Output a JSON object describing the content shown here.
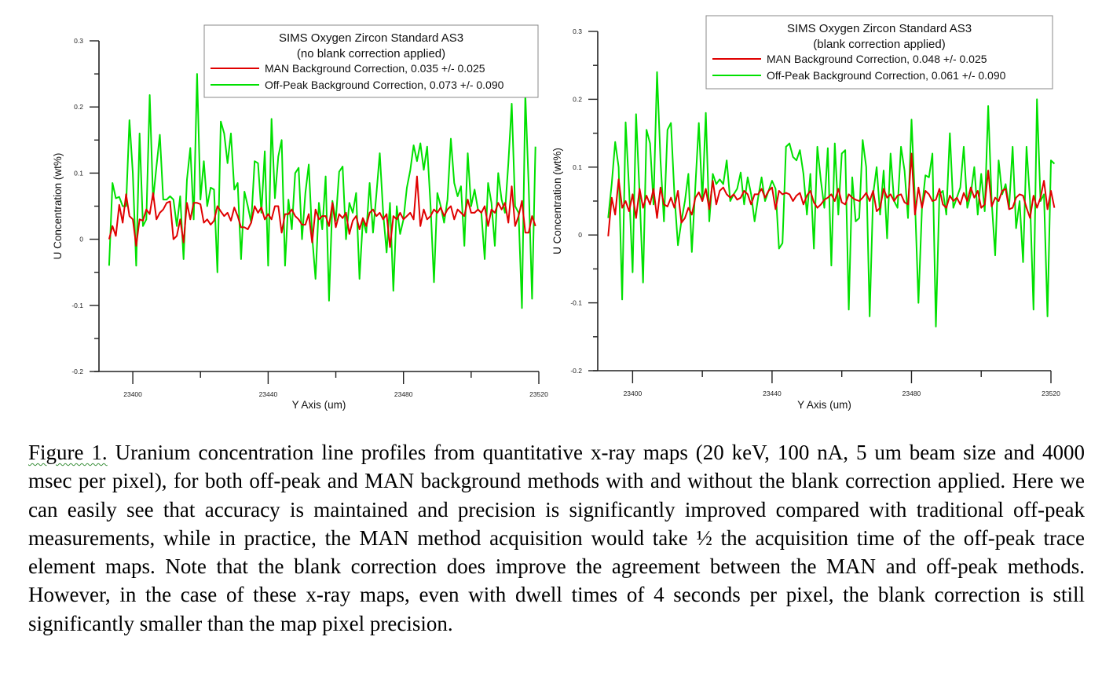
{
  "chart_data": [
    {
      "type": "line",
      "title": "SIMS Oxygen Zircon Standard AS3",
      "subtitle": "(no blank correction applied)",
      "xlabel": "Y Axis (um)",
      "ylabel": "U Concentration (wt%)",
      "xlim": [
        23390,
        23520
      ],
      "ylim": [
        -0.2,
        0.3
      ],
      "xticks": [
        23400,
        23440,
        23480,
        23520
      ],
      "xminor": [
        23420,
        23460,
        23500
      ],
      "yticks": [
        {
          "value": 0.3,
          "label": "0.3"
        },
        {
          "value": 0.2,
          "label": "0.2"
        },
        {
          "value": 0.1,
          "label": "0.1"
        },
        {
          "value": 0,
          "label": "0"
        },
        {
          "value": -0.1,
          "label": "-0.1"
        },
        {
          "value": -0.2,
          "label": "-0.2"
        }
      ],
      "yminor": [
        0.25,
        0.15,
        0.05,
        -0.05,
        -0.15
      ],
      "grid": false,
      "legend_position": "top-right",
      "x_start": 23393,
      "x_step": 1,
      "series": [
        {
          "name": "MAN Background Correction, 0.035 +/- 0.025",
          "color": "#e00000",
          "values": [
            0.0,
            0.02,
            0.005,
            0.052,
            0.025,
            0.068,
            0.035,
            0.03,
            -0.01,
            0.03,
            0.028,
            0.045,
            0.038,
            0.07,
            0.03,
            0.04,
            0.045,
            0.055,
            0.057,
            0.0,
            0.005,
            0.03,
            -0.005,
            0.055,
            0.03,
            0.055,
            0.055,
            0.053,
            0.025,
            0.03,
            0.022,
            0.028,
            0.05,
            0.042,
            0.035,
            0.04,
            0.028,
            0.048,
            0.035,
            0.018,
            0.018,
            0.015,
            0.025,
            0.05,
            0.04,
            0.048,
            0.03,
            0.038,
            0.03,
            0.05,
            0.05,
            0.01,
            0.038,
            0.038,
            0.045,
            0.035,
            0.03,
            0.022,
            0.022,
            0.038,
            -0.005,
            0.045,
            0.03,
            0.035,
            0.035,
            0.02,
            0.055,
            0.018,
            0.038,
            0.032,
            0.04,
            0.008,
            0.028,
            0.035,
            0.015,
            0.032,
            0.02,
            0.04,
            0.045,
            0.035,
            0.04,
            0.03,
            0.038,
            -0.012,
            0.035,
            0.03,
            0.04,
            0.03,
            0.035,
            0.04,
            0.03,
            0.095,
            0.02,
            0.045,
            0.03,
            0.035,
            0.045,
            0.04,
            0.048,
            0.035,
            0.045,
            0.05,
            0.03,
            0.045,
            0.04,
            0.035,
            0.06,
            0.04,
            0.04,
            0.045,
            0.04,
            0.05,
            0.02,
            0.045,
            0.04,
            0.055,
            0.045,
            0.055,
            0.025,
            0.08,
            0.02,
            0.035,
            0.058,
            0.01,
            0.01,
            0.035,
            0.02
          ]
        },
        {
          "name": "Off-Peak Background Correction, 0.073 +/- 0.090",
          "color": "#00e000",
          "values": [
            -0.04,
            0.085,
            0.062,
            0.064,
            0.05,
            0.05,
            0.18,
            0.1,
            -0.04,
            0.16,
            0.02,
            0.03,
            0.218,
            0.06,
            0.11,
            0.158,
            0.06,
            0.06,
            0.065,
            0.06,
            0.02,
            0.065,
            -0.03,
            0.09,
            0.138,
            0.03,
            0.25,
            0.06,
            0.118,
            0.05,
            0.078,
            0.075,
            -0.05,
            0.178,
            0.16,
            0.115,
            0.16,
            0.075,
            0.085,
            -0.03,
            0.072,
            0.05,
            0.025,
            0.118,
            0.115,
            0.04,
            0.133,
            -0.04,
            0.182,
            0.062,
            0.125,
            0.15,
            -0.04,
            0.06,
            0.015,
            0.1,
            0.108,
            0.0,
            0.07,
            0.113,
            0.005,
            -0.06,
            0.055,
            0.015,
            0.095,
            -0.093,
            0.058,
            0.028,
            0.102,
            0.11,
            0.0,
            0.055,
            0.04,
            0.07,
            -0.06,
            0.03,
            0.01,
            0.085,
            0.01,
            0.068,
            0.13,
            0.04,
            -0.02,
            0.055,
            -0.078,
            0.05,
            0.008,
            0.03,
            0.078,
            0.104,
            0.142,
            0.118,
            0.145,
            0.105,
            0.14,
            0.05,
            -0.065,
            0.07,
            0.05,
            0.025,
            0.06,
            0.152,
            0.085,
            0.065,
            0.08,
            -0.01,
            0.13,
            0.05,
            0.075,
            0.045,
            0.04,
            -0.03,
            0.085,
            0.055,
            -0.01,
            0.1,
            0.06,
            0.04,
            0.115,
            0.205,
            0.05,
            0.04,
            -0.104,
            0.22,
            0.08,
            -0.09,
            0.14
          ]
        }
      ]
    },
    {
      "type": "line",
      "title": "SIMS Oxygen Zircon Standard AS3",
      "subtitle": "(blank correction applied)",
      "xlabel": "Y Axis (um)",
      "ylabel": "U Concentration (wt%)",
      "xlim": [
        23390,
        23520
      ],
      "ylim": [
        -0.2,
        0.3
      ],
      "xticks": [
        23400,
        23440,
        23480,
        23520
      ],
      "xminor": [
        23420,
        23460,
        23500
      ],
      "yticks": [
        {
          "value": 0.3,
          "label": "0.3"
        },
        {
          "value": 0.2,
          "label": "0.2"
        },
        {
          "value": 0.1,
          "label": "0.1"
        },
        {
          "value": 0,
          "label": "0"
        },
        {
          "value": -0.1,
          "label": "-0.1"
        },
        {
          "value": -0.2,
          "label": "-0.2"
        }
      ],
      "yminor": [
        0.25,
        0.15,
        0.05,
        -0.05,
        -0.15
      ],
      "grid": false,
      "legend_position": "top-right",
      "x_start": 23393,
      "x_step": 1,
      "series": [
        {
          "name": "MAN Background Correction, 0.048 +/- 0.025",
          "color": "#e00000",
          "values": [
            -0.002,
            0.055,
            0.03,
            0.082,
            0.04,
            0.05,
            0.035,
            0.06,
            0.025,
            0.068,
            0.04,
            0.058,
            0.045,
            0.068,
            0.025,
            0.07,
            0.045,
            0.042,
            0.055,
            0.04,
            0.065,
            0.018,
            0.025,
            0.04,
            0.03,
            0.055,
            0.063,
            0.05,
            0.068,
            0.038,
            0.08,
            0.045,
            0.065,
            0.07,
            0.06,
            0.055,
            0.06,
            0.052,
            0.055,
            0.065,
            0.06,
            0.045,
            0.06,
            0.06,
            0.068,
            0.055,
            0.065,
            0.07,
            0.038,
            0.065,
            0.06,
            0.062,
            0.06,
            0.05,
            0.058,
            0.062,
            0.045,
            0.058,
            0.065,
            0.048,
            0.04,
            0.045,
            0.052,
            0.055,
            0.06,
            0.05,
            0.068,
            0.048,
            0.045,
            0.06,
            0.055,
            0.052,
            0.05,
            0.055,
            0.062,
            0.05,
            0.065,
            0.035,
            0.04,
            0.068,
            0.055,
            0.06,
            0.05,
            0.058,
            0.06,
            0.048,
            0.045,
            0.12,
            0.03,
            0.07,
            0.04,
            0.065,
            0.06,
            0.05,
            0.052,
            0.068,
            0.045,
            0.04,
            0.058,
            0.05,
            0.055,
            0.045,
            0.062,
            0.05,
            0.07,
            0.055,
            0.065,
            0.04,
            0.045,
            0.095,
            0.042,
            0.055,
            0.05,
            0.065,
            0.068,
            0.038,
            0.04,
            0.055,
            0.06,
            0.058,
            0.04,
            0.025,
            0.058,
            0.04,
            0.055,
            0.08,
            0.038,
            0.065,
            0.04
          ]
        },
        {
          "name": "Off-Peak Background Correction, 0.061 +/- 0.090",
          "color": "#00e000",
          "values": [
            0.025,
            0.075,
            0.137,
            0.1,
            -0.095,
            0.166,
            0.068,
            -0.055,
            0.178,
            0.06,
            -0.07,
            0.155,
            0.135,
            0.045,
            0.24,
            0.11,
            0.02,
            0.155,
            0.165,
            0.06,
            -0.015,
            0.02,
            0.05,
            0.09,
            -0.025,
            0.072,
            0.165,
            0.05,
            0.18,
            0.02,
            0.09,
            0.075,
            0.082,
            0.075,
            0.11,
            0.05,
            0.06,
            0.068,
            0.092,
            0.045,
            0.085,
            0.06,
            0.02,
            0.055,
            0.085,
            0.05,
            0.065,
            0.08,
            0.068,
            -0.02,
            -0.012,
            0.13,
            0.135,
            0.115,
            0.11,
            0.125,
            0.09,
            0.03,
            0.09,
            -0.02,
            0.13,
            0.08,
            0.04,
            0.128,
            -0.045,
            0.135,
            0.03,
            0.12,
            0.125,
            -0.11,
            0.085,
            0.02,
            0.025,
            0.14,
            0.1,
            -0.12,
            0.06,
            0.1,
            0.03,
            0.095,
            -0.005,
            0.12,
            0.05,
            0.04,
            0.13,
            0.095,
            0.025,
            0.17,
            0.05,
            -0.1,
            0.04,
            0.088,
            0.085,
            0.12,
            -0.135,
            0.06,
            0.065,
            0.03,
            0.15,
            0.04,
            0.055,
            0.07,
            0.13,
            0.04,
            0.06,
            0.1,
            0.03,
            0.09,
            0.035,
            0.19,
            0.05,
            -0.03,
            0.11,
            0.06,
            0.075,
            0.04,
            0.13,
            0.01,
            0.05,
            -0.04,
            0.13,
            0.05,
            -0.11,
            0.2,
            0.05,
            0.06,
            -0.12,
            0.11,
            0.105
          ]
        }
      ]
    }
  ],
  "caption": {
    "figure_label": "Figure 1.",
    "text": " Uranium concentration line profiles from quantitative x-ray maps (20 keV, 100 nA, 5 um beam size and 4000 msec per pixel), for both off-peak and MAN background methods with and without the blank correction applied. Here we can easily see that accuracy is maintained and precision is significantly improved compared with traditional off-peak measurements, while in practice, the MAN method acquisition would take ½ the acquisition time of the off-peak trace element maps. Note that the blank correction does improve the agreement between the MAN and off-peak methods. However, in the case of these x-ray maps, even with dwell times of 4 seconds per pixel, the blank correction is still significantly smaller than the map pixel precision."
  }
}
